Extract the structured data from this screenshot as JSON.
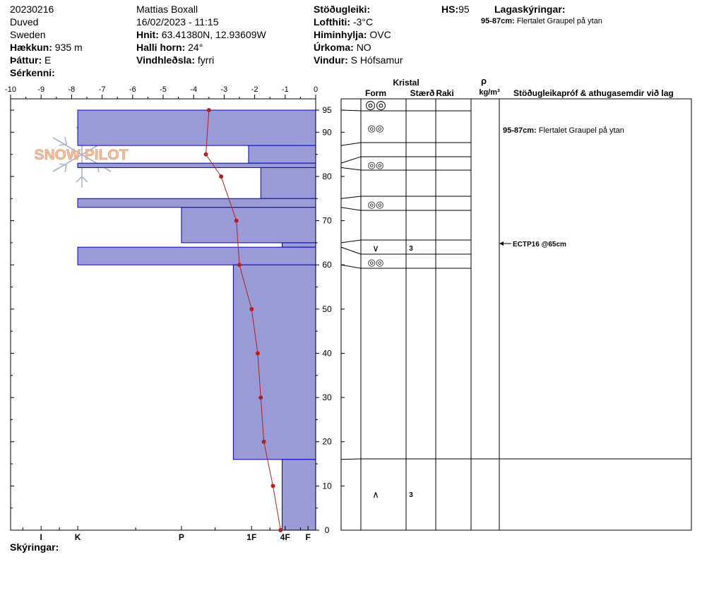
{
  "header": {
    "col1": {
      "date": "20230216",
      "location": "Duved",
      "country": "Sweden",
      "elevation_label": "Hækkun:",
      "elevation_value": "935 m",
      "aspect_label": "Þáttur:",
      "aspect_value": "E",
      "features_label": "Sérkenni:"
    },
    "col2": {
      "observer": "Mattias Boxall",
      "datetime": "16/02/2023 - 11:15",
      "coords_label": "Hnit:",
      "coords_value": "63.41380N, 12.93609W",
      "slope_label": "Halli horn:",
      "slope_value": "24°",
      "wind_loading_label": "Vindhleðsla:",
      "wind_loading_value": "fyrri"
    },
    "col3": {
      "stability_label": "Stöðugleiki:",
      "air_temp_label": "Lofthiti:",
      "air_temp_value": "-3°C",
      "sky_label": "Himinhylja:",
      "sky_value": "OVC",
      "precip_label": "Úrkoma:",
      "precip_value": "NO",
      "wind_label": "Vindur:",
      "wind_value": "S Hófsamur"
    },
    "hs_label": "HS:",
    "hs_value": "95",
    "layer_notes_label": "Lagaskýringar:",
    "layer_notes": [
      {
        "range": "95-87cm:",
        "text": "Flertalet Graupel på ytan"
      }
    ]
  },
  "footer": {
    "notes_label": "Skýringar:"
  },
  "logo": {
    "text": "SNOW PILOT"
  },
  "colors": {
    "bar_fill": "#9b9bd7",
    "bar_stroke": "#0000c8",
    "temp_line": "#b22222"
  },
  "table": {
    "kristal_label": "Kristal",
    "form_label": "Form",
    "size_label": "Stærð",
    "moisture_label": "Raki",
    "rho_label": "ρ",
    "density_unit": "kg/m³",
    "comments_label": "Stöðugleikapróf & athugasemdir við lag",
    "comment_rows": [
      {
        "depth": 87,
        "range": "95-87cm:",
        "text": "Flertalet Graupel på ytan"
      }
    ],
    "test": {
      "depth": 65,
      "label": "ECTP16 @65cm"
    }
  },
  "chart_data": {
    "type": "snow_profile",
    "snow_height_cm": 95,
    "temperature_axis": {
      "min": -10,
      "max": 0,
      "ticks": [
        -10,
        -9,
        -8,
        -7,
        -6,
        -5,
        -4,
        -3,
        -2,
        -1,
        0
      ]
    },
    "height_axis": {
      "min": 0,
      "max": 95,
      "ticks": [
        0,
        10,
        20,
        30,
        40,
        50,
        60,
        70,
        80,
        90,
        95
      ]
    },
    "hardness_axis": {
      "labels": [
        {
          "label": "I",
          "temp": -9.0
        },
        {
          "label": "K",
          "temp": -7.8
        },
        {
          "label": "P",
          "temp": -4.4
        },
        {
          "label": "1F",
          "temp": -2.1
        },
        {
          "label": "4F",
          "temp": -1.0
        },
        {
          "label": "F",
          "temp": -0.25
        }
      ]
    },
    "hardness_layers": [
      {
        "top": 95,
        "bottom": 87,
        "hardness_temp": -7.8
      },
      {
        "top": 87,
        "bottom": 83,
        "hardness_temp": -2.2
      },
      {
        "top": 83,
        "bottom": 82,
        "hardness_temp": -7.8
      },
      {
        "top": 82,
        "bottom": 75,
        "hardness_temp": -1.8
      },
      {
        "top": 75,
        "bottom": 73,
        "hardness_temp": -7.8
      },
      {
        "top": 73,
        "bottom": 65,
        "hardness_temp": -4.4
      },
      {
        "top": 65,
        "bottom": 64,
        "hardness_temp": -1.1
      },
      {
        "top": 64,
        "bottom": 60,
        "hardness_temp": -7.8
      },
      {
        "top": 60,
        "bottom": 16,
        "hardness_temp": -2.7
      },
      {
        "top": 16,
        "bottom": 0,
        "hardness_temp": -1.1
      }
    ],
    "temperature_profile": [
      {
        "height": 95,
        "temp": -3.5
      },
      {
        "height": 85,
        "temp": -3.6
      },
      {
        "height": 80,
        "temp": -3.1
      },
      {
        "height": 70,
        "temp": -2.6
      },
      {
        "height": 60,
        "temp": -2.5
      },
      {
        "height": 50,
        "temp": -2.1
      },
      {
        "height": 40,
        "temp": -1.9
      },
      {
        "height": 30,
        "temp": -1.8
      },
      {
        "height": 20,
        "temp": -1.7
      },
      {
        "height": 10,
        "temp": -1.4
      },
      {
        "height": 0,
        "temp": -1.15
      }
    ],
    "layer_boundaries": [
      95,
      87,
      83,
      82,
      75,
      73,
      65,
      64,
      60,
      16
    ],
    "grain_rows": [
      {
        "height": 93.5,
        "symbol": "◎◎",
        "size": ""
      },
      {
        "height": 91,
        "symbol": "◎◎",
        "size": ""
      },
      {
        "height": 82.5,
        "symbol": "◎◎",
        "size": ""
      },
      {
        "height": 73.5,
        "symbol": "◎◎",
        "size": ""
      },
      {
        "height": 64.5,
        "symbol": "∨",
        "size": "3"
      },
      {
        "height": 61.5,
        "symbol": "◎◎",
        "size": ""
      },
      {
        "height": 8,
        "symbol": "∧",
        "size": "3"
      }
    ]
  }
}
